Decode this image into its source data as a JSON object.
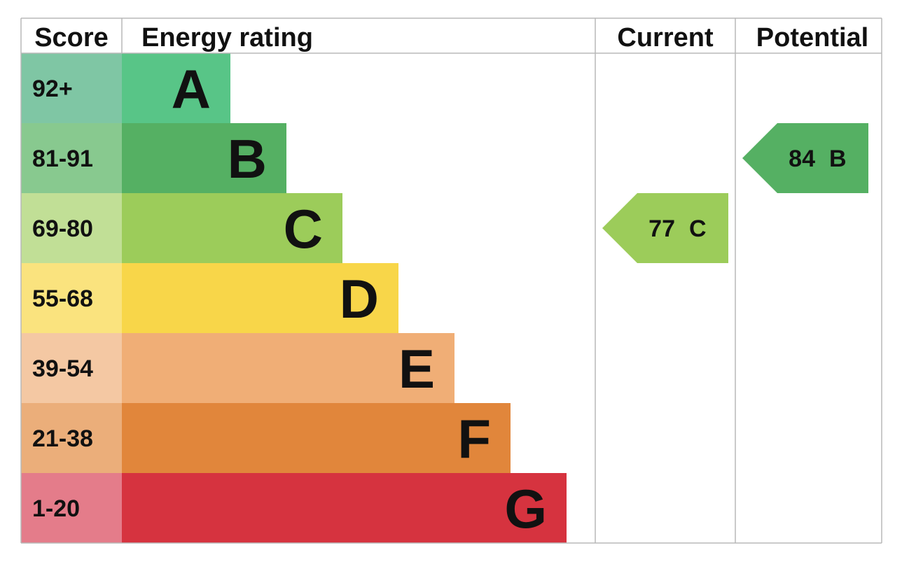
{
  "chart_data": {
    "type": "table",
    "columns": [
      "Score",
      "Energy rating",
      "Current",
      "Potential"
    ],
    "bands": [
      {
        "score": "92+",
        "letter": "A",
        "color": "#58c587",
        "score_bg": "#7fc6a4"
      },
      {
        "score": "81-91",
        "letter": "B",
        "color": "#55b063",
        "score_bg": "#88c98f"
      },
      {
        "score": "69-80",
        "letter": "C",
        "color": "#9ccc5a",
        "score_bg": "#c1df96"
      },
      {
        "score": "55-68",
        "letter": "D",
        "color": "#f8d649",
        "score_bg": "#fae37e"
      },
      {
        "score": "39-54",
        "letter": "E",
        "color": "#f0ae76",
        "score_bg": "#f4c8a3"
      },
      {
        "score": "21-38",
        "letter": "F",
        "color": "#e1863b",
        "score_bg": "#ebae7a"
      },
      {
        "score": "1-20",
        "letter": "G",
        "color": "#d6333f",
        "score_bg": "#e47c8a"
      }
    ],
    "current": {
      "value": 77,
      "letter": "C",
      "band": 2
    },
    "potential": {
      "value": 84,
      "letter": "B",
      "band": 1
    }
  },
  "colors": {
    "grid": "#b8b8b8",
    "text": "#111111"
  }
}
